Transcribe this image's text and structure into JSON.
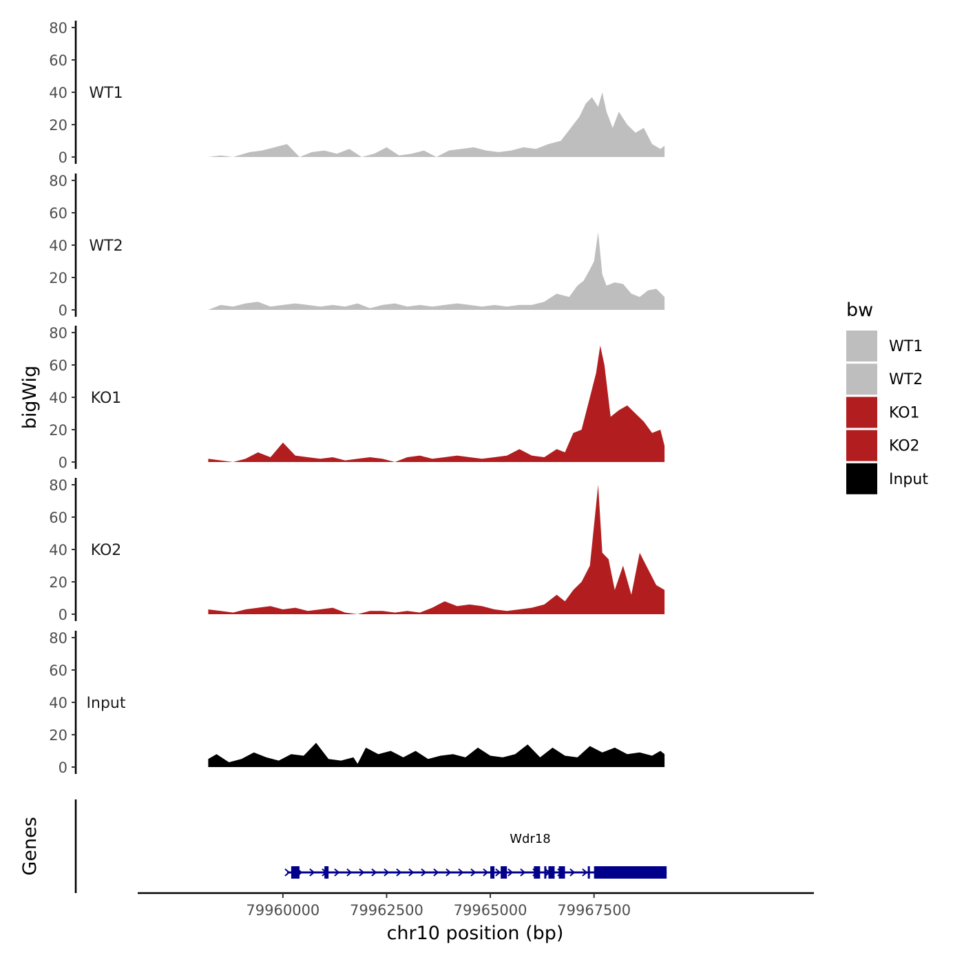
{
  "chart_data": {
    "type": "area",
    "ylabel": "bigWig",
    "xlabel": "chr10 position (bp)",
    "genes_label": "Genes",
    "ylim": [
      0,
      80
    ],
    "yticks": [
      "0",
      "20",
      "40",
      "60",
      "80"
    ],
    "xlim": [
      79956500,
      79972800
    ],
    "xticks": [
      {
        "value": 79960000,
        "label": "79960000"
      },
      {
        "value": 79962500,
        "label": "79962500"
      },
      {
        "value": 79965000,
        "label": "79965000"
      },
      {
        "value": 79967500,
        "label": "79967500"
      }
    ],
    "legend": {
      "title": "bw",
      "placement": "right",
      "items": [
        {
          "name": "WT1",
          "color": "#bebebe"
        },
        {
          "name": "WT2",
          "color": "#bebebe"
        },
        {
          "name": "KO1",
          "color": "#b21e1f"
        },
        {
          "name": "KO2",
          "color": "#b21e1f"
        },
        {
          "name": "Input",
          "color": "#000000"
        }
      ]
    },
    "series": [
      {
        "name": "WT1",
        "color": "#bebebe",
        "x": [
          79958200,
          79958500,
          79958800,
          79959200,
          79959500,
          79959800,
          79960100,
          79960400,
          79960700,
          79961000,
          79961300,
          79961600,
          79961900,
          79962200,
          79962500,
          79962800,
          79963100,
          79963400,
          79963700,
          79964000,
          79964300,
          79964600,
          79964900,
          79965200,
          79965500,
          79965800,
          79966100,
          79966400,
          79966700,
          79967000,
          79967150,
          79967300,
          79967450,
          79967600,
          79967700,
          79967800,
          79967950,
          79968100,
          79968300,
          79968500,
          79968700,
          79968900,
          79969100,
          79969200
        ],
        "values": [
          0,
          1,
          0,
          3,
          4,
          6,
          8,
          0,
          3,
          4,
          2,
          5,
          0,
          2,
          6,
          1,
          2,
          4,
          0,
          4,
          5,
          6,
          4,
          3,
          4,
          6,
          5,
          8,
          10,
          20,
          25,
          33,
          37,
          31,
          40,
          28,
          18,
          28,
          20,
          15,
          18,
          8,
          5,
          7
        ]
      },
      {
        "name": "WT2",
        "color": "#bebebe",
        "x": [
          79958200,
          79958500,
          79958800,
          79959100,
          79959400,
          79959700,
          79960000,
          79960300,
          79960600,
          79960900,
          79961200,
          79961500,
          79961800,
          79962100,
          79962400,
          79962700,
          79963000,
          79963300,
          79963600,
          79963900,
          79964200,
          79964500,
          79964800,
          79965100,
          79965400,
          79965700,
          79966000,
          79966300,
          79966600,
          79966900,
          79967100,
          79967250,
          79967400,
          79967500,
          79967600,
          79967700,
          79967800,
          79968000,
          79968200,
          79968400,
          79968600,
          79968800,
          79969000,
          79969200
        ],
        "values": [
          0,
          3,
          2,
          4,
          5,
          2,
          3,
          4,
          3,
          2,
          3,
          2,
          4,
          1,
          3,
          4,
          2,
          3,
          2,
          3,
          4,
          3,
          2,
          3,
          2,
          3,
          3,
          5,
          10,
          8,
          15,
          18,
          25,
          30,
          48,
          22,
          15,
          17,
          16,
          10,
          8,
          12,
          13,
          8
        ]
      },
      {
        "name": "KO1",
        "color": "#b21e1f",
        "x": [
          79958200,
          79958500,
          79958800,
          79959100,
          79959400,
          79959700,
          79960000,
          79960300,
          79960600,
          79960900,
          79961200,
          79961500,
          79961800,
          79962100,
          79962400,
          79962700,
          79963000,
          79963300,
          79963600,
          79963900,
          79964200,
          79964500,
          79964800,
          79965100,
          79965400,
          79965700,
          79966000,
          79966300,
          79966600,
          79966800,
          79967000,
          79967200,
          79967400,
          79967550,
          79967650,
          79967750,
          79967900,
          79968100,
          79968300,
          79968500,
          79968700,
          79968900,
          79969100,
          79969200
        ],
        "values": [
          2,
          1,
          0,
          2,
          6,
          3,
          12,
          4,
          3,
          2,
          3,
          1,
          2,
          3,
          2,
          0,
          3,
          4,
          2,
          3,
          4,
          3,
          2,
          3,
          4,
          8,
          4,
          3,
          8,
          6,
          18,
          20,
          40,
          55,
          72,
          60,
          28,
          32,
          35,
          30,
          25,
          18,
          20,
          10
        ]
      },
      {
        "name": "KO2",
        "color": "#b21e1f",
        "x": [
          79958200,
          79958500,
          79958800,
          79959100,
          79959400,
          79959700,
          79960000,
          79960300,
          79960600,
          79960900,
          79961200,
          79961500,
          79961800,
          79962100,
          79962400,
          79962700,
          79963000,
          79963300,
          79963600,
          79963900,
          79964200,
          79964500,
          79964800,
          79965100,
          79965400,
          79965700,
          79966000,
          79966300,
          79966600,
          79966800,
          79967000,
          79967200,
          79967400,
          79967500,
          79967600,
          79967700,
          79967850,
          79968000,
          79968200,
          79968400,
          79968600,
          79968800,
          79969000,
          79969200
        ],
        "values": [
          3,
          2,
          1,
          3,
          4,
          5,
          3,
          4,
          2,
          3,
          4,
          1,
          0,
          2,
          2,
          1,
          2,
          1,
          4,
          8,
          5,
          6,
          5,
          3,
          2,
          3,
          4,
          6,
          12,
          8,
          15,
          20,
          30,
          55,
          80,
          38,
          34,
          15,
          30,
          12,
          38,
          28,
          18,
          15
        ]
      },
      {
        "name": "Input",
        "color": "#000000",
        "x": [
          79958200,
          79958400,
          79958700,
          79959000,
          79959300,
          79959600,
          79959900,
          79960200,
          79960500,
          79960800,
          79961100,
          79961400,
          79961700,
          79961800,
          79962000,
          79962300,
          79962600,
          79962900,
          79963200,
          79963500,
          79963800,
          79964100,
          79964400,
          79964700,
          79965000,
          79965300,
          79965600,
          79965900,
          79966200,
          79966500,
          79966800,
          79967100,
          79967400,
          79967700,
          79968000,
          79968300,
          79968600,
          79968900,
          79969100,
          79969200
        ],
        "values": [
          5,
          8,
          3,
          5,
          9,
          6,
          4,
          8,
          7,
          15,
          5,
          4,
          6,
          2,
          12,
          8,
          10,
          6,
          10,
          5,
          7,
          8,
          6,
          12,
          7,
          6,
          8,
          14,
          6,
          12,
          7,
          6,
          13,
          9,
          12,
          8,
          9,
          7,
          10,
          8
        ]
      }
    ],
    "gene": {
      "name": "Wdr18",
      "strand": "+",
      "start": 79960200,
      "end": 79969250,
      "exons": [
        [
          79960200,
          79960400
        ],
        [
          79961000,
          79961100
        ],
        [
          79965000,
          79965100
        ],
        [
          79965250,
          79965400
        ],
        [
          79966050,
          79966200
        ],
        [
          79966300,
          79966350
        ],
        [
          79966400,
          79966550
        ],
        [
          79966650,
          79966800
        ],
        [
          79967350,
          79967400
        ],
        [
          79967500,
          79969250
        ]
      ]
    }
  }
}
